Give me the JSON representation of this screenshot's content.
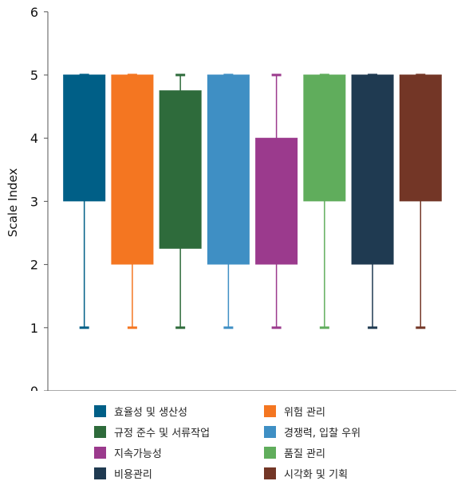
{
  "chart_data": {
    "type": "box",
    "ylabel": "Scale Index",
    "xlabel": "",
    "ylim": [
      0,
      6
    ],
    "yticks": [
      "0",
      "1",
      "2",
      "3",
      "4",
      "5",
      "6"
    ],
    "grid": false,
    "legend_position": "bottom",
    "series": [
      {
        "name": "효율성 및 생산성",
        "color": "#005f87",
        "min": 1,
        "q1": 3,
        "median": 5,
        "q3": 5,
        "max": 5
      },
      {
        "name": "위험 관리",
        "color": "#f47621",
        "min": 1,
        "q1": 2,
        "median": 5,
        "q3": 5,
        "max": 5
      },
      {
        "name": "규정 준수 및 서류작업",
        "color": "#2e6b3b",
        "min": 1,
        "q1": 2.25,
        "median": 4.75,
        "q3": 4.75,
        "max": 5
      },
      {
        "name": "경쟁력, 입찰 우위",
        "color": "#3f8fc4",
        "min": 1,
        "q1": 2,
        "median": 5,
        "q3": 5,
        "max": 5
      },
      {
        "name": "지속가능성",
        "color": "#9b3a8d",
        "min": 1,
        "q1": 2,
        "median": 4,
        "q3": 4,
        "max": 5
      },
      {
        "name": "품질 관리",
        "color": "#60ad5c",
        "min": 1,
        "q1": 3,
        "median": 5,
        "q3": 5,
        "max": 5
      },
      {
        "name": "비용관리",
        "color": "#1f3a51",
        "min": 1,
        "q1": 2,
        "median": 5,
        "q3": 5,
        "max": 5
      },
      {
        "name": "시각화 및 기획",
        "color": "#733626",
        "min": 1,
        "q1": 3,
        "median": 5,
        "q3": 5,
        "max": 5
      }
    ]
  }
}
